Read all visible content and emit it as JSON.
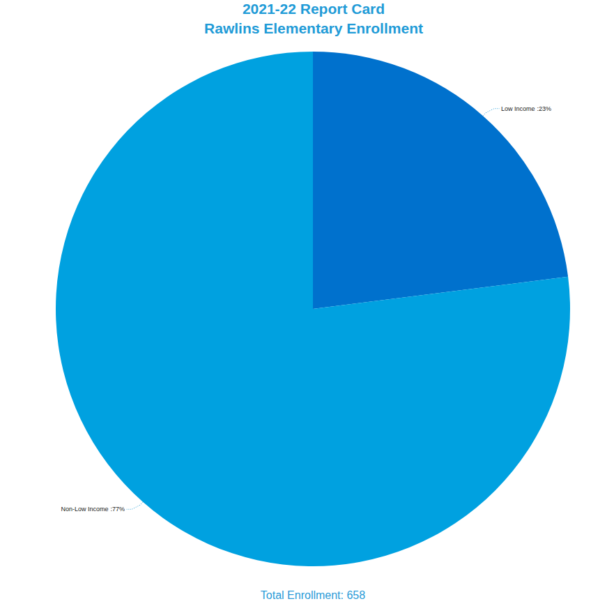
{
  "chart_data": {
    "type": "pie",
    "title": "2021-22 Report Card",
    "subtitle": "Rawlins Elementary Enrollment",
    "categories": [
      "Low Income",
      "Non-Low Income"
    ],
    "values": [
      23,
      77
    ],
    "value_labels": [
      ":23%",
      ":77%"
    ],
    "colors": [
      "#0071cd",
      "#00a1e0"
    ],
    "data_labels": true,
    "annotations": [
      "Total Enrollment: 658"
    ]
  }
}
